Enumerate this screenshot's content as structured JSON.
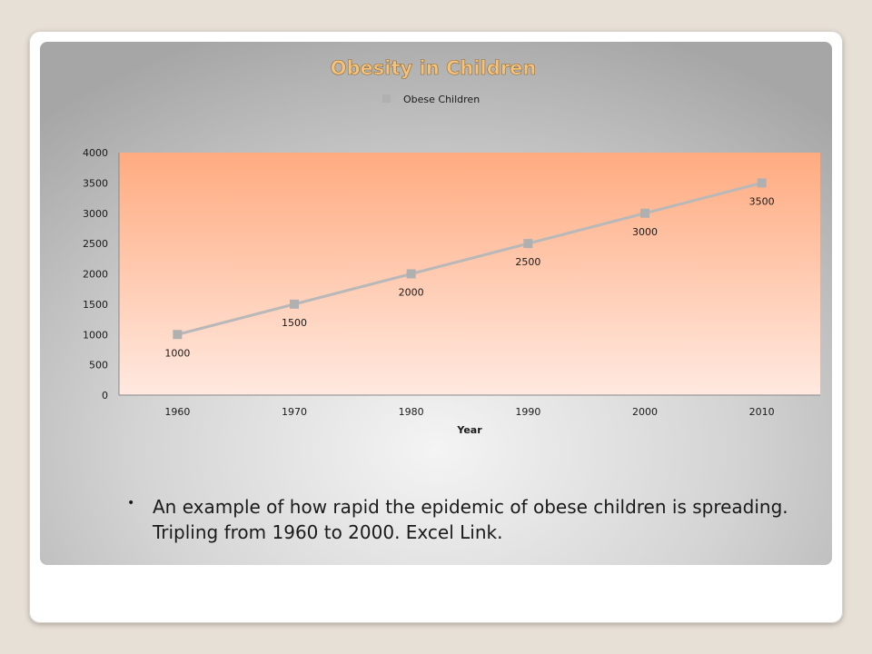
{
  "slide": {
    "bullet_text": "An example of how rapid the epidemic of obese children is spreading. Tripling from 1960 to 2000. Excel Link."
  },
  "chart_data": {
    "type": "line",
    "title": "Obesity in Children",
    "xlabel": "Year",
    "ylabel": "",
    "categories": [
      "1960",
      "1970",
      "1980",
      "1990",
      "2000",
      "2010"
    ],
    "series": [
      {
        "name": "Obese Children",
        "values": [
          1000,
          1500,
          2000,
          2500,
          3000,
          3500
        ]
      }
    ],
    "ylim": [
      0,
      4000
    ],
    "yticks": [
      0,
      500,
      1000,
      1500,
      2000,
      2500,
      3000,
      3500,
      4000
    ],
    "data_labels": true,
    "legend": "top-center",
    "grid": false,
    "colors": {
      "title": "#f4c27a",
      "line": "#b8b8b8",
      "marker": "#b0b0b0",
      "plot_top": "#ffab80",
      "plot_bottom": "#ffe9e0"
    }
  }
}
